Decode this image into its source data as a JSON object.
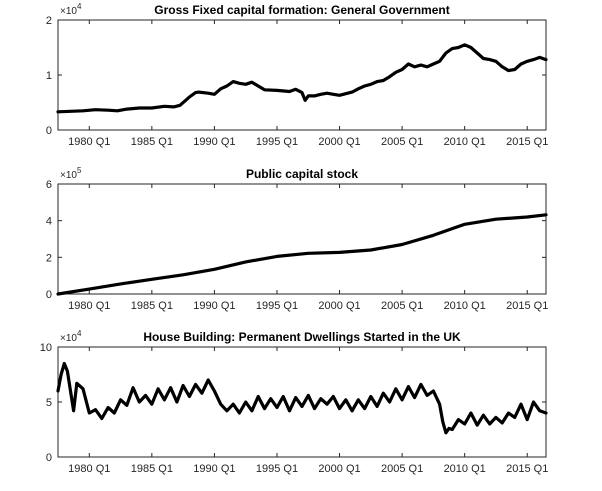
{
  "chart_data": [
    {
      "type": "line",
      "title": "Gross Fixed capital formation: General Government",
      "multiplier": "×10",
      "multiplier_exponent": "4",
      "ylim": [
        0,
        20000
      ],
      "yticks": [
        0,
        10000,
        20000
      ],
      "ytick_labels": [
        "0",
        "1",
        "2"
      ],
      "xlim": [
        1977.5,
        2016.5
      ],
      "xticks": [
        1980,
        1985,
        1990,
        1995,
        2000,
        2005,
        2010,
        2015
      ],
      "xtick_labels": [
        "1980 Q1",
        "1985 Q1",
        "1990 Q1",
        "1995 Q1",
        "2000 Q1",
        "2005 Q1",
        "2010 Q1",
        "2015 Q1"
      ],
      "series": [
        {
          "x": [
            1977.5,
            1978.5,
            1979.5,
            1980.5,
            1981.5,
            1982.25,
            1983.0,
            1984.0,
            1985.0,
            1986.0,
            1986.75,
            1987.25,
            1987.75,
            1988.0,
            1988.5,
            1988.75,
            1989.5,
            1990.0,
            1990.5,
            1991.0,
            1991.5,
            1992.0,
            1992.5,
            1993.0,
            1993.5,
            1994.0,
            1995.0,
            1996.0,
            1996.5,
            1997.0,
            1997.25,
            1997.5,
            1998.0,
            1998.5,
            1999.0,
            1999.5,
            2000.0,
            2000.5,
            2001.0,
            2001.5,
            2002.0,
            2002.5,
            2003.0,
            2003.5,
            2004.0,
            2004.5,
            2005.0,
            2005.5,
            2006.0,
            2006.5,
            2007.0,
            2007.5,
            2008.0,
            2008.5,
            2009.0,
            2009.5,
            2010.0,
            2010.5,
            2011.0,
            2011.5,
            2012.0,
            2012.5,
            2013.0,
            2013.5,
            2014.0,
            2014.5,
            2015.0,
            2015.5,
            2016.0,
            2016.5
          ],
          "y": [
            3300,
            3400,
            3500,
            3700,
            3600,
            3500,
            3800,
            4000,
            4000,
            4300,
            4200,
            4500,
            5500,
            6000,
            6800,
            6900,
            6700,
            6500,
            7500,
            8000,
            8800,
            8500,
            8300,
            8700,
            8000,
            7300,
            7200,
            7000,
            7400,
            6800,
            5400,
            6200,
            6200,
            6500,
            6700,
            6500,
            6300,
            6600,
            6900,
            7500,
            8000,
            8300,
            8800,
            9000,
            9700,
            10500,
            11000,
            12000,
            11500,
            11800,
            11500,
            12000,
            12500,
            14000,
            14800,
            15000,
            15500,
            15000,
            14000,
            13000,
            12800,
            12500,
            11500,
            10800,
            11000,
            12000,
            12500,
            12800,
            13200,
            12800
          ]
        }
      ]
    },
    {
      "type": "line",
      "title": "Public capital stock",
      "multiplier": "×10",
      "multiplier_exponent": "5",
      "ylim": [
        0,
        600000
      ],
      "yticks": [
        0,
        200000,
        400000,
        600000
      ],
      "ytick_labels": [
        "0",
        "2",
        "4",
        "6"
      ],
      "xlim": [
        1977.5,
        2016.5
      ],
      "xticks": [
        1980,
        1985,
        1990,
        1995,
        2000,
        2005,
        2010,
        2015
      ],
      "xtick_labels": [
        "1980 Q1",
        "1985 Q1",
        "1990 Q1",
        "1995 Q1",
        "2000 Q1",
        "2005 Q1",
        "2010 Q1",
        "2015 Q1"
      ],
      "series": [
        {
          "x": [
            1977.5,
            1980,
            1982.5,
            1985,
            1987.5,
            1990,
            1992.5,
            1995,
            1997.5,
            2000,
            2002.5,
            2005,
            2007.5,
            2010,
            2012.5,
            2015,
            2016.5
          ],
          "y": [
            0,
            27000,
            55000,
            80000,
            105000,
            135000,
            175000,
            205000,
            222000,
            227000,
            240000,
            270000,
            320000,
            380000,
            408000,
            420000,
            432000
          ]
        }
      ]
    },
    {
      "type": "line",
      "title": "House Building: Permanent Dwellings Started in the UK",
      "multiplier": "×10",
      "multiplier_exponent": "4",
      "ylim": [
        0,
        100000
      ],
      "yticks": [
        0,
        50000,
        100000
      ],
      "ytick_labels": [
        "0",
        "5",
        "10"
      ],
      "xlim": [
        1977.5,
        2016.5
      ],
      "xticks": [
        1980,
        1985,
        1990,
        1995,
        2000,
        2005,
        2010,
        2015
      ],
      "xtick_labels": [
        "1980 Q1",
        "1985 Q1",
        "1990 Q1",
        "1995 Q1",
        "2000 Q1",
        "2005 Q1",
        "2010 Q1",
        "2015 Q1"
      ],
      "series": [
        {
          "x": [
            1977.5,
            1977.75,
            1978.0,
            1978.25,
            1978.5,
            1978.75,
            1979.0,
            1979.5,
            1980.0,
            1980.5,
            1981.0,
            1981.5,
            1982.0,
            1982.5,
            1983.0,
            1983.5,
            1984.0,
            1984.5,
            1985.0,
            1985.5,
            1986.0,
            1986.5,
            1987.0,
            1987.5,
            1988.0,
            1988.5,
            1989.0,
            1989.5,
            1990.0,
            1990.5,
            1991.0,
            1991.5,
            1992.0,
            1992.5,
            1993.0,
            1993.5,
            1994.0,
            1994.5,
            1995.0,
            1995.5,
            1996.0,
            1996.5,
            1997.0,
            1997.5,
            1998.0,
            1998.5,
            1999.0,
            1999.5,
            2000.0,
            2000.5,
            2001.0,
            2001.5,
            2002.0,
            2002.5,
            2003.0,
            2003.5,
            2004.0,
            2004.5,
            2005.0,
            2005.5,
            2006.0,
            2006.5,
            2007.0,
            2007.5,
            2008.0,
            2008.25,
            2008.5,
            2008.75,
            2009.0,
            2009.5,
            2010.0,
            2010.5,
            2011.0,
            2011.5,
            2012.0,
            2012.5,
            2013.0,
            2013.5,
            2014.0,
            2014.5,
            2015.0,
            2015.5,
            2016.0,
            2016.5
          ],
          "y": [
            60000,
            75000,
            85000,
            78000,
            60000,
            42000,
            67000,
            62000,
            40000,
            43000,
            35000,
            45000,
            40000,
            52000,
            47000,
            63000,
            50000,
            56000,
            48000,
            62000,
            52000,
            63000,
            50000,
            65000,
            55000,
            66000,
            58000,
            70000,
            60000,
            48000,
            42000,
            48000,
            40000,
            50000,
            42000,
            55000,
            44000,
            53000,
            45000,
            55000,
            42000,
            54000,
            46000,
            56000,
            44000,
            53000,
            48000,
            55000,
            44000,
            52000,
            42000,
            52000,
            44000,
            55000,
            46000,
            58000,
            50000,
            62000,
            52000,
            64000,
            54000,
            66000,
            56000,
            60000,
            48000,
            32000,
            22000,
            26000,
            25000,
            34000,
            30000,
            40000,
            29000,
            38000,
            30000,
            36000,
            31000,
            40000,
            36000,
            48000,
            34000,
            50000,
            42000,
            40000
          ]
        }
      ]
    }
  ]
}
